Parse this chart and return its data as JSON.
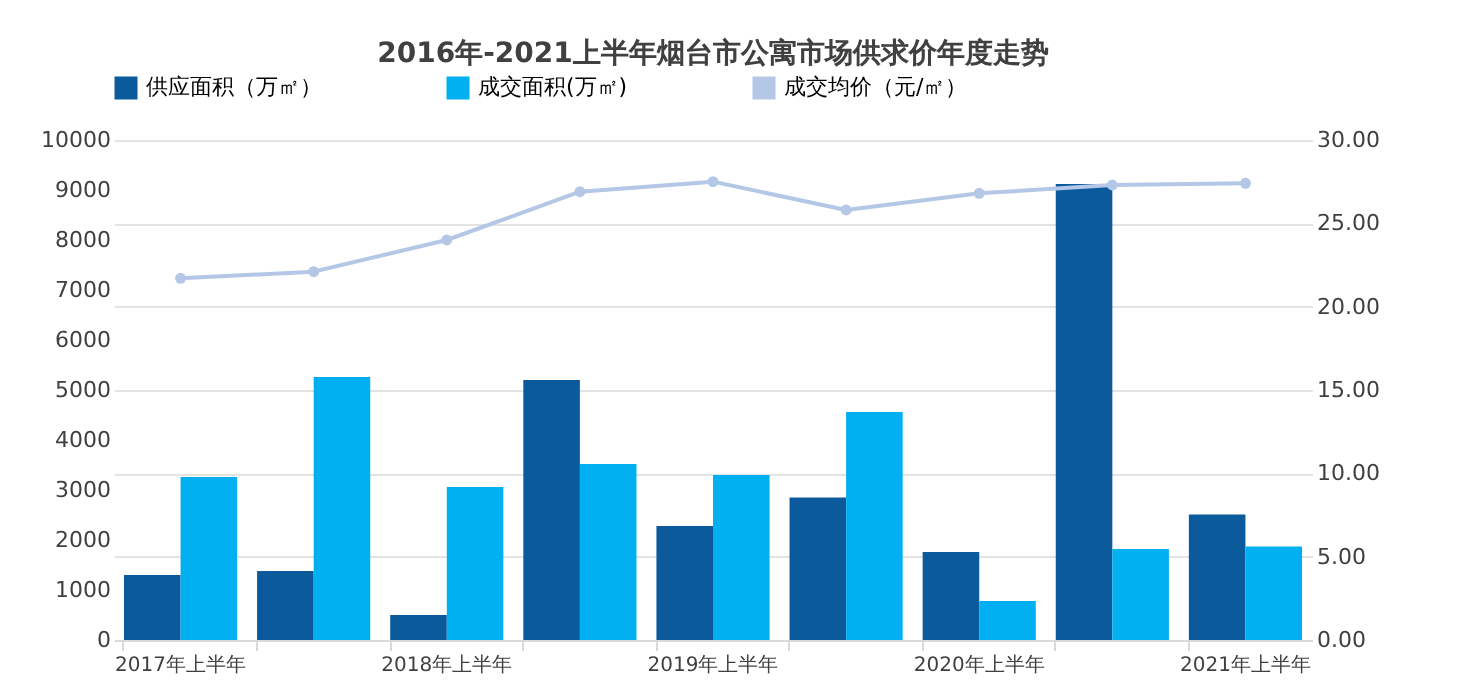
{
  "chart_data": {
    "type": "bar",
    "title": "2016年-2021上半年烟台市公寓市场供求价年度走势",
    "categories": [
      "2017年上半年",
      null,
      "2018年上半年",
      null,
      "2019年上半年",
      null,
      "2020年上半年",
      null,
      "2021年上半年"
    ],
    "series": [
      {
        "name": "供应面积（万㎡）",
        "color": "#0a5a9c",
        "values": [
          1300,
          1380,
          500,
          5200,
          2280,
          2850,
          1760,
          9120,
          2510
        ]
      },
      {
        "name": "成交面积(万㎡)",
        "color": "#00b0f0",
        "values": [
          3260,
          5260,
          3060,
          3520,
          3300,
          4560,
          780,
          1820,
          1870
        ]
      },
      {
        "name": "成交均价（元/㎡）",
        "type": "line",
        "axis": "y2",
        "color": "#b4c7e7",
        "marker": "circle",
        "values": [
          21.7,
          22.1,
          24.0,
          26.9,
          27.5,
          25.8,
          26.8,
          27.3,
          27.4
        ]
      }
    ],
    "ylim": [
      0,
      10000
    ],
    "yticks": [
      0,
      1000,
      2000,
      3000,
      4000,
      5000,
      6000,
      7000,
      8000,
      9000,
      10000
    ],
    "y2lim": [
      0,
      30
    ],
    "y2ticks": [
      {
        "value": 0,
        "label": "0.00"
      },
      {
        "value": 5,
        "label": "5.00"
      },
      {
        "value": 10,
        "label": "10.00"
      },
      {
        "value": 15,
        "label": "15.00"
      },
      {
        "value": 20,
        "label": "20.00"
      },
      {
        "value": 25,
        "label": "25.00"
      },
      {
        "value": 30,
        "label": "30.00"
      }
    ],
    "grid": "y",
    "legend": "top"
  }
}
